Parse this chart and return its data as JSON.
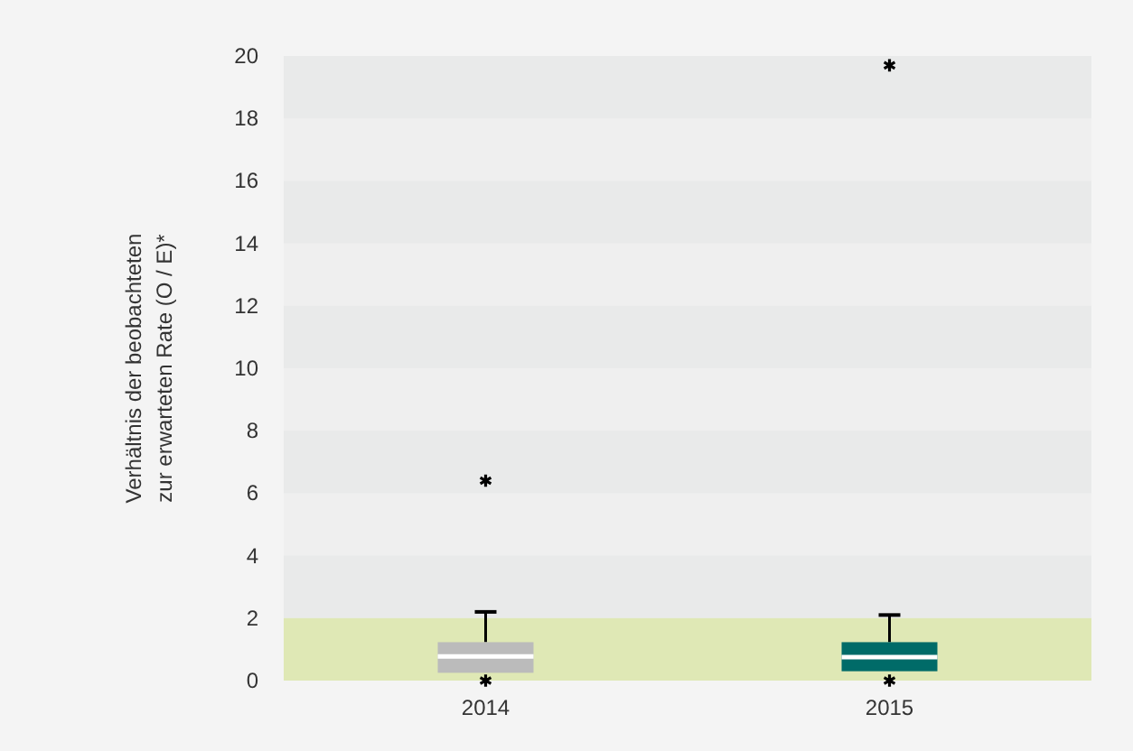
{
  "chart_data": {
    "type": "box",
    "ylabel": "Verhältnis der beobachteten zur erwarteten Rate (O / E)*",
    "categories": [
      "2014",
      "2015"
    ],
    "series": [
      {
        "color": "#bbbbbb",
        "boxes": [
          {
            "low": 0.25,
            "q1": 0.25,
            "median": 0.77,
            "q3": 1.23,
            "high": 2.2,
            "outliers": [
              0,
              6.4
            ]
          },
          null
        ]
      },
      {
        "color": "#006b68",
        "boxes": [
          null,
          {
            "low": 0.3,
            "q1": 0.3,
            "median": 0.75,
            "q3": 1.23,
            "high": 2.1,
            "outliers": [
              0,
              19.7
            ]
          }
        ]
      }
    ],
    "ylim": [
      0,
      20
    ],
    "yticks": [
      0,
      2,
      4,
      6,
      8,
      10,
      12,
      14,
      16,
      18,
      20
    ],
    "bands": [
      {
        "axis": "y",
        "from": 0,
        "to": 2,
        "color": "#dfe8b5"
      }
    ]
  }
}
